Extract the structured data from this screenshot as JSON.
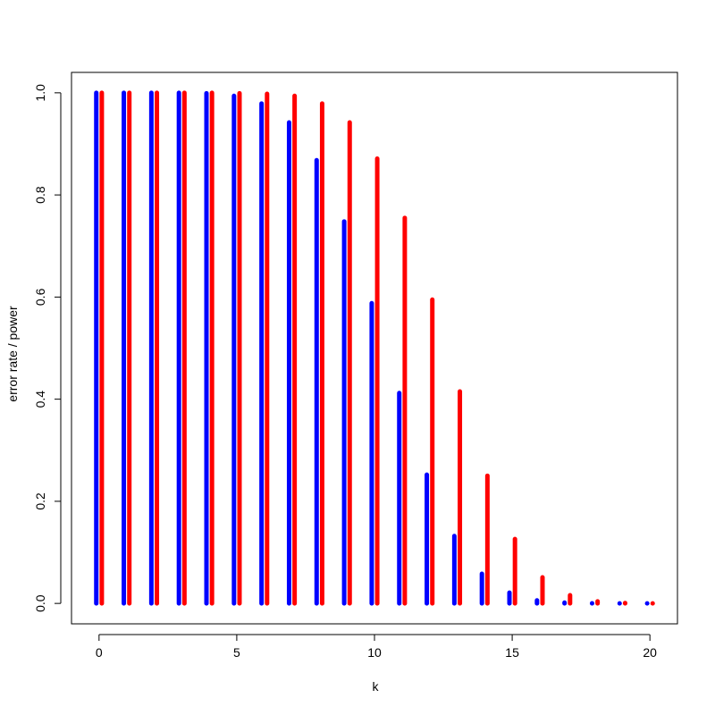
{
  "chart_data": {
    "type": "bar",
    "title": "",
    "xlabel": "k",
    "ylabel": "error rate / power",
    "xlim": [
      -1,
      21
    ],
    "ylim": [
      -0.04,
      1.04
    ],
    "x_ticks": [
      0,
      5,
      10,
      15,
      20
    ],
    "y_ticks": [
      0.0,
      0.2,
      0.4,
      0.6,
      0.8,
      1.0
    ],
    "x_tick_labels": [
      "0",
      "5",
      "10",
      "15",
      "20"
    ],
    "y_tick_labels": [
      "0.0",
      "0.2",
      "0.4",
      "0.6",
      "0.8",
      "1.0"
    ],
    "x": [
      0,
      1,
      2,
      3,
      4,
      5,
      6,
      7,
      8,
      9,
      10,
      11,
      12,
      13,
      14,
      15,
      16,
      17,
      18,
      19,
      20
    ],
    "series": [
      {
        "color": "#0000ff",
        "offset": -0.1,
        "values": [
          1.0,
          1.0,
          1.0,
          1.0,
          0.999,
          0.994,
          0.979,
          0.942,
          0.868,
          0.748,
          0.588,
          0.412,
          0.252,
          0.132,
          0.058,
          0.021,
          0.006,
          0.0015,
          0.0003,
          0.0,
          0.0
        ]
      },
      {
        "color": "#ff0000",
        "offset": 0.1,
        "values": [
          1.0,
          1.0,
          1.0,
          1.0,
          1.0,
          0.999,
          0.998,
          0.994,
          0.979,
          0.942,
          0.871,
          0.755,
          0.595,
          0.415,
          0.25,
          0.126,
          0.051,
          0.016,
          0.004,
          0.0008,
          0.0001
        ]
      }
    ],
    "grid": false,
    "legend": "none"
  }
}
